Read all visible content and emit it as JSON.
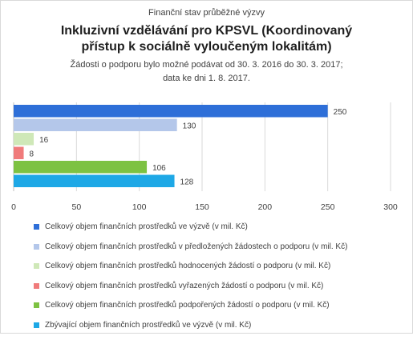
{
  "chart_data": {
    "type": "bar",
    "orientation": "horizontal",
    "subtitle": "Finanční stav průběžné výzvy",
    "title": "Inkluzivní vzdělávání pro KPSVL (Koordinovaný přístup k sociálně vyloučeným lokalitám)",
    "note_lines": [
      "Žádosti o podporu bylo možné  podávat od 30. 3. 2016 do 30. 3. 2017;",
      "data ke dni 1. 8. 2017."
    ],
    "xlim": [
      0,
      300
    ],
    "xticks": [
      0,
      50,
      100,
      150,
      200,
      250,
      300
    ],
    "grid": true,
    "legend_position": "bottom",
    "series": [
      {
        "name": "Celkový objem finančních prostředků ve výzvě (v mil. Kč)",
        "value": 250,
        "color": "#2e6fd8"
      },
      {
        "name": "Celkový objem finančních prostředků v předložených žádostech o podporu (v mil. Kč)",
        "value": 130,
        "color": "#b4c7ea"
      },
      {
        "name": "Celkový objem finančních prostředků hodnocených žádostí o podporu (v mil. Kč)",
        "value": 16,
        "color": "#cfe8b8"
      },
      {
        "name": "Celkový objem finančních prostředků vyřazených žádostí o podporu (v mil. Kč)",
        "value": 8,
        "color": "#f07b7b"
      },
      {
        "name": "Celkový objem finančních prostředků podpořených žádostí o podporu (v mil. Kč)",
        "value": 106,
        "color": "#7dc242"
      },
      {
        "name": "Zbývající objem finančních prostředků ve výzvě (v mil. Kč)",
        "value": 128,
        "color": "#1ea8e6"
      }
    ]
  }
}
